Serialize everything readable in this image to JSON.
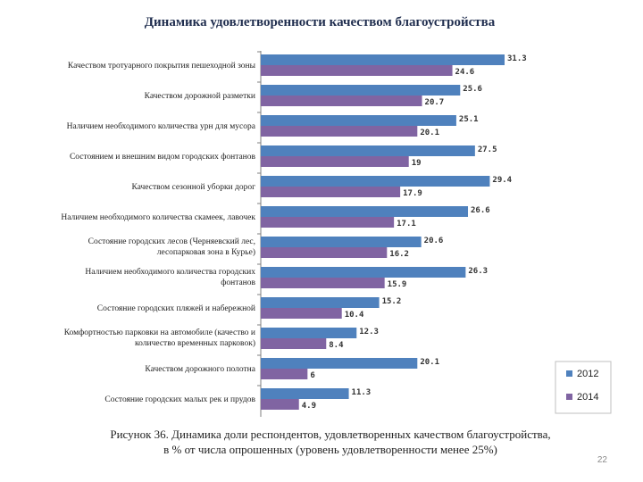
{
  "chart_data": {
    "type": "bar",
    "orientation": "horizontal",
    "title": "Динамика удовлетворенности качеством благоустройства",
    "categories": [
      [
        "Качеством тротуарного покрытия пешеходной зоны"
      ],
      [
        "Качеством дорожной разметки"
      ],
      [
        "Наличием необходимого количества урн для мусора"
      ],
      [
        "Состоянием и внешним видом городских фонтанов"
      ],
      [
        "Качеством сезонной уборки дорог"
      ],
      [
        "Наличием необходимого количества скамеек, лавочек"
      ],
      [
        "Состояние городских лесов (Черняевский лес,",
        "лесопарковая зона в Курье)"
      ],
      [
        "Наличием необходимого количества городских",
        "фонтанов"
      ],
      [
        "Состояние городских пляжей и набережной"
      ],
      [
        "Комфортностью парковки на автомобиле (качество и",
        "количество временных парковок)"
      ],
      [
        "Качеством  дорожного полотна"
      ],
      [
        "Состояние городских малых рек и прудов"
      ]
    ],
    "series": [
      {
        "name": "2012",
        "color": "#4f81bd",
        "values": [
          31.3,
          25.6,
          25.1,
          27.5,
          29.4,
          26.6,
          20.6,
          26.3,
          15.2,
          12.3,
          20.1,
          11.3
        ],
        "labels": [
          "31.3",
          "25.6",
          "25.1",
          "27.5",
          "29.4",
          "26.6",
          "20.6",
          "26.3",
          "15.2",
          "12.3",
          "20.1",
          "11.3"
        ]
      },
      {
        "name": "2014",
        "color": "#8064a2",
        "values": [
          24.6,
          20.7,
          20.1,
          19,
          17.9,
          17.1,
          16.2,
          15.9,
          10.4,
          8.4,
          6,
          4.9
        ],
        "labels": [
          "24.6",
          "20.7",
          "20.1",
          "19",
          "17.9",
          "17.1",
          "16.2",
          "15.9",
          "10.4",
          "8.4",
          "6",
          "4.9"
        ]
      }
    ],
    "xlim": [
      0,
      31.3
    ],
    "grid": false,
    "legend": "bottom-right"
  },
  "caption": {
    "line1": "Рисунок 36. Динамика доли респондентов, удовлетворенных качеством благоустройства,",
    "line2": "в % от числа опрошенных (уровень удовлетворенности менее 25%)"
  },
  "page_number": "22"
}
